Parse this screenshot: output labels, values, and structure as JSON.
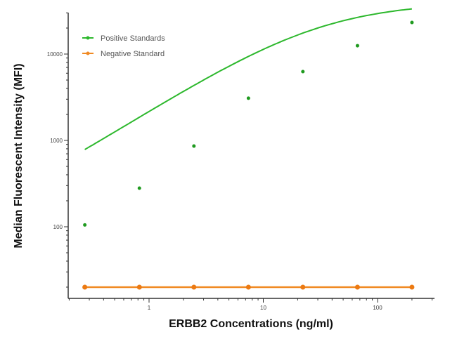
{
  "chart_data": {
    "type": "scatter",
    "title": "",
    "xlabel": "ERBB2 Concentrations (ng/ml)",
    "ylabel": "Median  Fluorescent Intensity  (MFI)",
    "xscale": "log",
    "yscale": "log",
    "xlim": [
      0.22,
      250
    ],
    "ylim": [
      8,
      30000
    ],
    "x_ticks": [
      1,
      10,
      100
    ],
    "x_tick_labels": [
      "1",
      "10",
      "100"
    ],
    "y_ticks": [
      100,
      1000,
      10000
    ],
    "y_tick_labels": [
      "100",
      "1000",
      "10000"
    ],
    "grid": false,
    "legend_position": "upper left",
    "x": [
      0.274,
      0.823,
      2.47,
      7.41,
      22.2,
      66.7,
      200
    ],
    "series": [
      {
        "name": "Positive Standards",
        "color": "#2db82d",
        "values": [
          105,
          280,
          860,
          3080,
          6260,
          12500,
          23200
        ],
        "fit": "4PL curve"
      },
      {
        "name": "Negative Standard",
        "color": "#f08a24",
        "values": [
          20,
          20,
          20,
          20,
          20,
          20,
          20
        ]
      }
    ]
  }
}
